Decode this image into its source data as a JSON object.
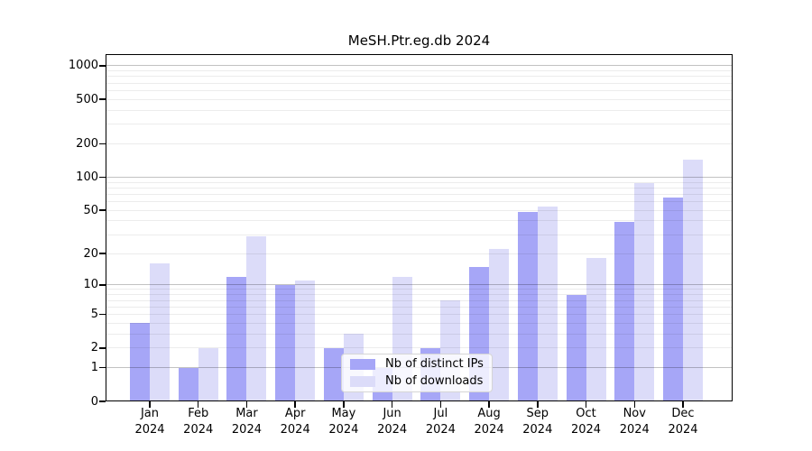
{
  "chart_data": {
    "type": "bar",
    "title": "MeSH.Ptr.eg.db 2024",
    "categories": [
      "Jan",
      "Feb",
      "Mar",
      "Apr",
      "May",
      "Jun",
      "Jul",
      "Aug",
      "Sep",
      "Oct",
      "Nov",
      "Dec"
    ],
    "year_label": "2024",
    "series": [
      {
        "name": "Nb of distinct IPs",
        "color": "#a6a6f7",
        "values": [
          4,
          1,
          12,
          10,
          2,
          1,
          2,
          15,
          48,
          8,
          39,
          66
        ]
      },
      {
        "name": "Nb of downloads",
        "color": "#dcdcf9",
        "values": [
          16,
          2,
          29,
          11,
          3,
          12,
          7,
          22,
          54,
          18,
          88,
          145
        ]
      }
    ],
    "yscale": "log1p",
    "yticks": [
      0,
      1,
      2,
      5,
      10,
      20,
      50,
      100,
      200,
      500,
      1000
    ],
    "ylim": [
      0,
      1270
    ],
    "grid": true,
    "legend_position": "inside-lower-center"
  },
  "colors": {
    "background": "#ffffff",
    "frame": "#000000",
    "grid_major": "#c2c2c2",
    "grid_minor": "#ececec",
    "bar_distinct_ips": "#a6a6f7",
    "bar_downloads": "#dcdcf9"
  }
}
